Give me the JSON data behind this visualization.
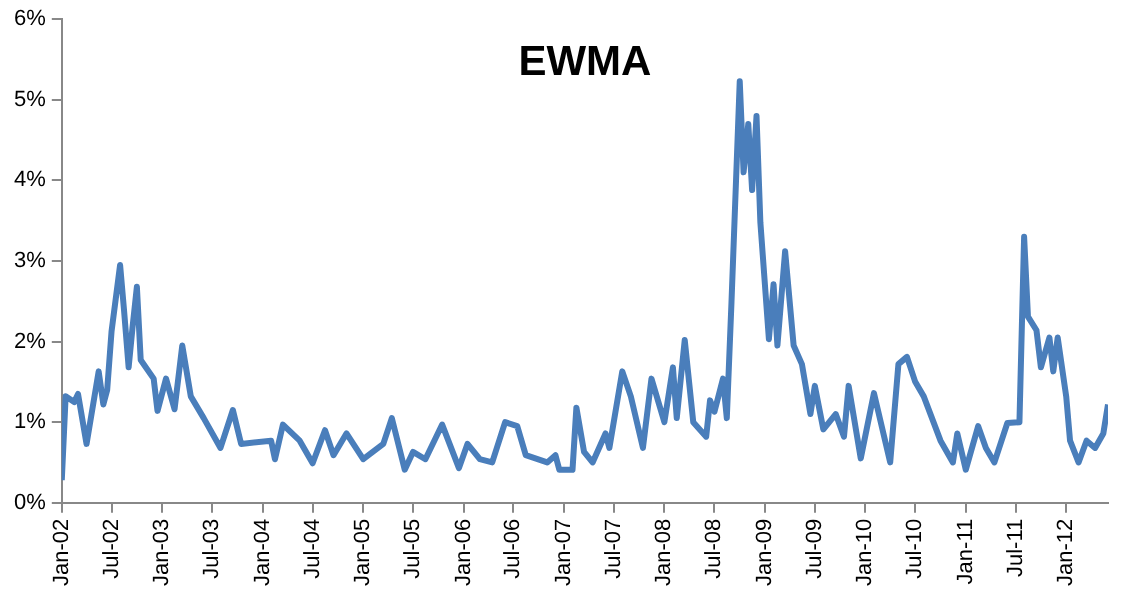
{
  "chart_data": {
    "type": "line",
    "title": "EWMA",
    "x": [
      "2002-01-01",
      "2002-01-15",
      "2002-02-15",
      "2002-03-01",
      "2002-04-01",
      "2002-05-15",
      "2002-06-01",
      "2002-06-15",
      "2002-07-01",
      "2002-08-01",
      "2002-08-15",
      "2002-09-01",
      "2002-09-15",
      "2002-10-01",
      "2002-10-15",
      "2002-12-01",
      "2002-12-15",
      "2003-01-15",
      "2003-02-15",
      "2003-03-15",
      "2003-04-15",
      "2003-06-01",
      "2003-08-01",
      "2003-09-15",
      "2003-10-15",
      "2004-02-01",
      "2004-02-15",
      "2004-03-15",
      "2004-05-15",
      "2004-07-01",
      "2004-08-15",
      "2004-09-15",
      "2004-11-01",
      "2005-01-01",
      "2005-03-15",
      "2005-04-15",
      "2005-06-01",
      "2005-07-01",
      "2005-08-15",
      "2005-10-15",
      "2005-12-15",
      "2006-01-15",
      "2006-03-01",
      "2006-04-15",
      "2006-06-01",
      "2006-07-15",
      "2006-08-15",
      "2006-11-01",
      "2006-12-01",
      "2006-12-15",
      "2007-02-01",
      "2007-02-15",
      "2007-03-15",
      "2007-04-15",
      "2007-06-01",
      "2007-06-15",
      "2007-08-01",
      "2007-09-01",
      "2007-10-15",
      "2007-11-15",
      "2008-01-01",
      "2008-02-01",
      "2008-02-15",
      "2008-03-15",
      "2008-04-15",
      "2008-06-01",
      "2008-06-15",
      "2008-07-01",
      "2008-08-01",
      "2008-08-15",
      "2008-09-01",
      "2008-10-01",
      "2008-10-15",
      "2008-11-01",
      "2008-11-15",
      "2008-12-01",
      "2008-12-15",
      "2009-01-15",
      "2009-02-01",
      "2009-02-15",
      "2009-03-15",
      "2009-04-15",
      "2009-05-15",
      "2009-06-15",
      "2009-07-01",
      "2009-08-01",
      "2009-09-15",
      "2009-10-15",
      "2009-11-01",
      "2009-12-15",
      "2010-02-01",
      "2010-04-01",
      "2010-05-01",
      "2010-06-01",
      "2010-07-01",
      "2010-08-01",
      "2010-10-01",
      "2010-11-15",
      "2010-12-01",
      "2011-01-01",
      "2011-02-15",
      "2011-03-15",
      "2011-04-15",
      "2011-06-01",
      "2011-07-15",
      "2011-08-01",
      "2011-08-15",
      "2011-09-15",
      "2011-10-01",
      "2011-11-01",
      "2011-11-15",
      "2011-12-01",
      "2012-01-01",
      "2012-01-15",
      "2012-02-15",
      "2012-03-15",
      "2012-04-15",
      "2012-05-15",
      "2012-06-01"
    ],
    "series": [
      {
        "color": "#4a7ebb",
        "values": [
          0.28,
          1.32,
          1.25,
          1.35,
          0.73,
          1.63,
          1.22,
          1.4,
          2.13,
          2.95,
          2.4,
          1.68,
          2.17,
          2.68,
          1.77,
          1.54,
          1.14,
          1.54,
          1.16,
          1.95,
          1.32,
          1.05,
          0.68,
          1.15,
          0.73,
          0.77,
          0.54,
          0.97,
          0.77,
          0.49,
          0.9,
          0.59,
          0.86,
          0.54,
          0.73,
          1.05,
          0.41,
          0.63,
          0.54,
          0.97,
          0.43,
          0.73,
          0.54,
          0.5,
          1.0,
          0.95,
          0.59,
          0.5,
          0.59,
          0.41,
          0.41,
          1.18,
          0.63,
          0.5,
          0.86,
          0.68,
          1.63,
          1.32,
          0.68,
          1.54,
          1.0,
          1.68,
          1.05,
          2.02,
          1.0,
          0.82,
          1.27,
          1.13,
          1.54,
          1.05,
          2.49,
          5.23,
          4.1,
          4.7,
          3.88,
          4.8,
          3.48,
          2.03,
          2.71,
          1.95,
          3.12,
          1.95,
          1.72,
          1.1,
          1.45,
          0.91,
          1.1,
          0.82,
          1.45,
          0.55,
          1.36,
          0.5,
          1.72,
          1.81,
          1.5,
          1.32,
          0.77,
          0.5,
          0.86,
          0.41,
          0.95,
          0.68,
          0.5,
          0.99,
          1.0,
          3.3,
          2.31,
          2.14,
          1.68,
          2.05,
          1.63,
          2.05,
          1.32,
          0.77,
          0.5,
          0.77,
          0.68,
          0.86,
          1.22
        ]
      }
    ],
    "xlim": [
      "2002-01-01",
      "2012-06-01"
    ],
    "xticks": [
      {
        "value": "2002-01-01",
        "label": "Jan-02"
      },
      {
        "value": "2002-07-01",
        "label": "Jul-02"
      },
      {
        "value": "2003-01-01",
        "label": "Jan-03"
      },
      {
        "value": "2003-07-01",
        "label": "Jul-03"
      },
      {
        "value": "2004-01-01",
        "label": "Jan-04"
      },
      {
        "value": "2004-07-01",
        "label": "Jul-04"
      },
      {
        "value": "2005-01-01",
        "label": "Jan-05"
      },
      {
        "value": "2005-07-01",
        "label": "Jul-05"
      },
      {
        "value": "2006-01-01",
        "label": "Jan-06"
      },
      {
        "value": "2006-07-01",
        "label": "Jul-06"
      },
      {
        "value": "2007-01-01",
        "label": "Jan-07"
      },
      {
        "value": "2007-07-01",
        "label": "Jul-07"
      },
      {
        "value": "2008-01-01",
        "label": "Jan-08"
      },
      {
        "value": "2008-07-01",
        "label": "Jul-08"
      },
      {
        "value": "2009-01-01",
        "label": "Jan-09"
      },
      {
        "value": "2009-07-01",
        "label": "Jul-09"
      },
      {
        "value": "2010-01-01",
        "label": "Jan-10"
      },
      {
        "value": "2010-07-01",
        "label": "Jul-10"
      },
      {
        "value": "2011-01-01",
        "label": "Jan-11"
      },
      {
        "value": "2011-07-01",
        "label": "Jul-11"
      },
      {
        "value": "2012-01-01",
        "label": "Jan-12"
      }
    ],
    "ylim": [
      0,
      6
    ],
    "yticks": [
      {
        "value": 0,
        "label": "0%"
      },
      {
        "value": 1,
        "label": "1%"
      },
      {
        "value": 2,
        "label": "2%"
      },
      {
        "value": 3,
        "label": "3%"
      },
      {
        "value": 4,
        "label": "4%"
      },
      {
        "value": 5,
        "label": "5%"
      },
      {
        "value": 6,
        "label": "6%"
      }
    ],
    "grid": false,
    "legend": false,
    "marker": "none",
    "line_style": "solid"
  }
}
